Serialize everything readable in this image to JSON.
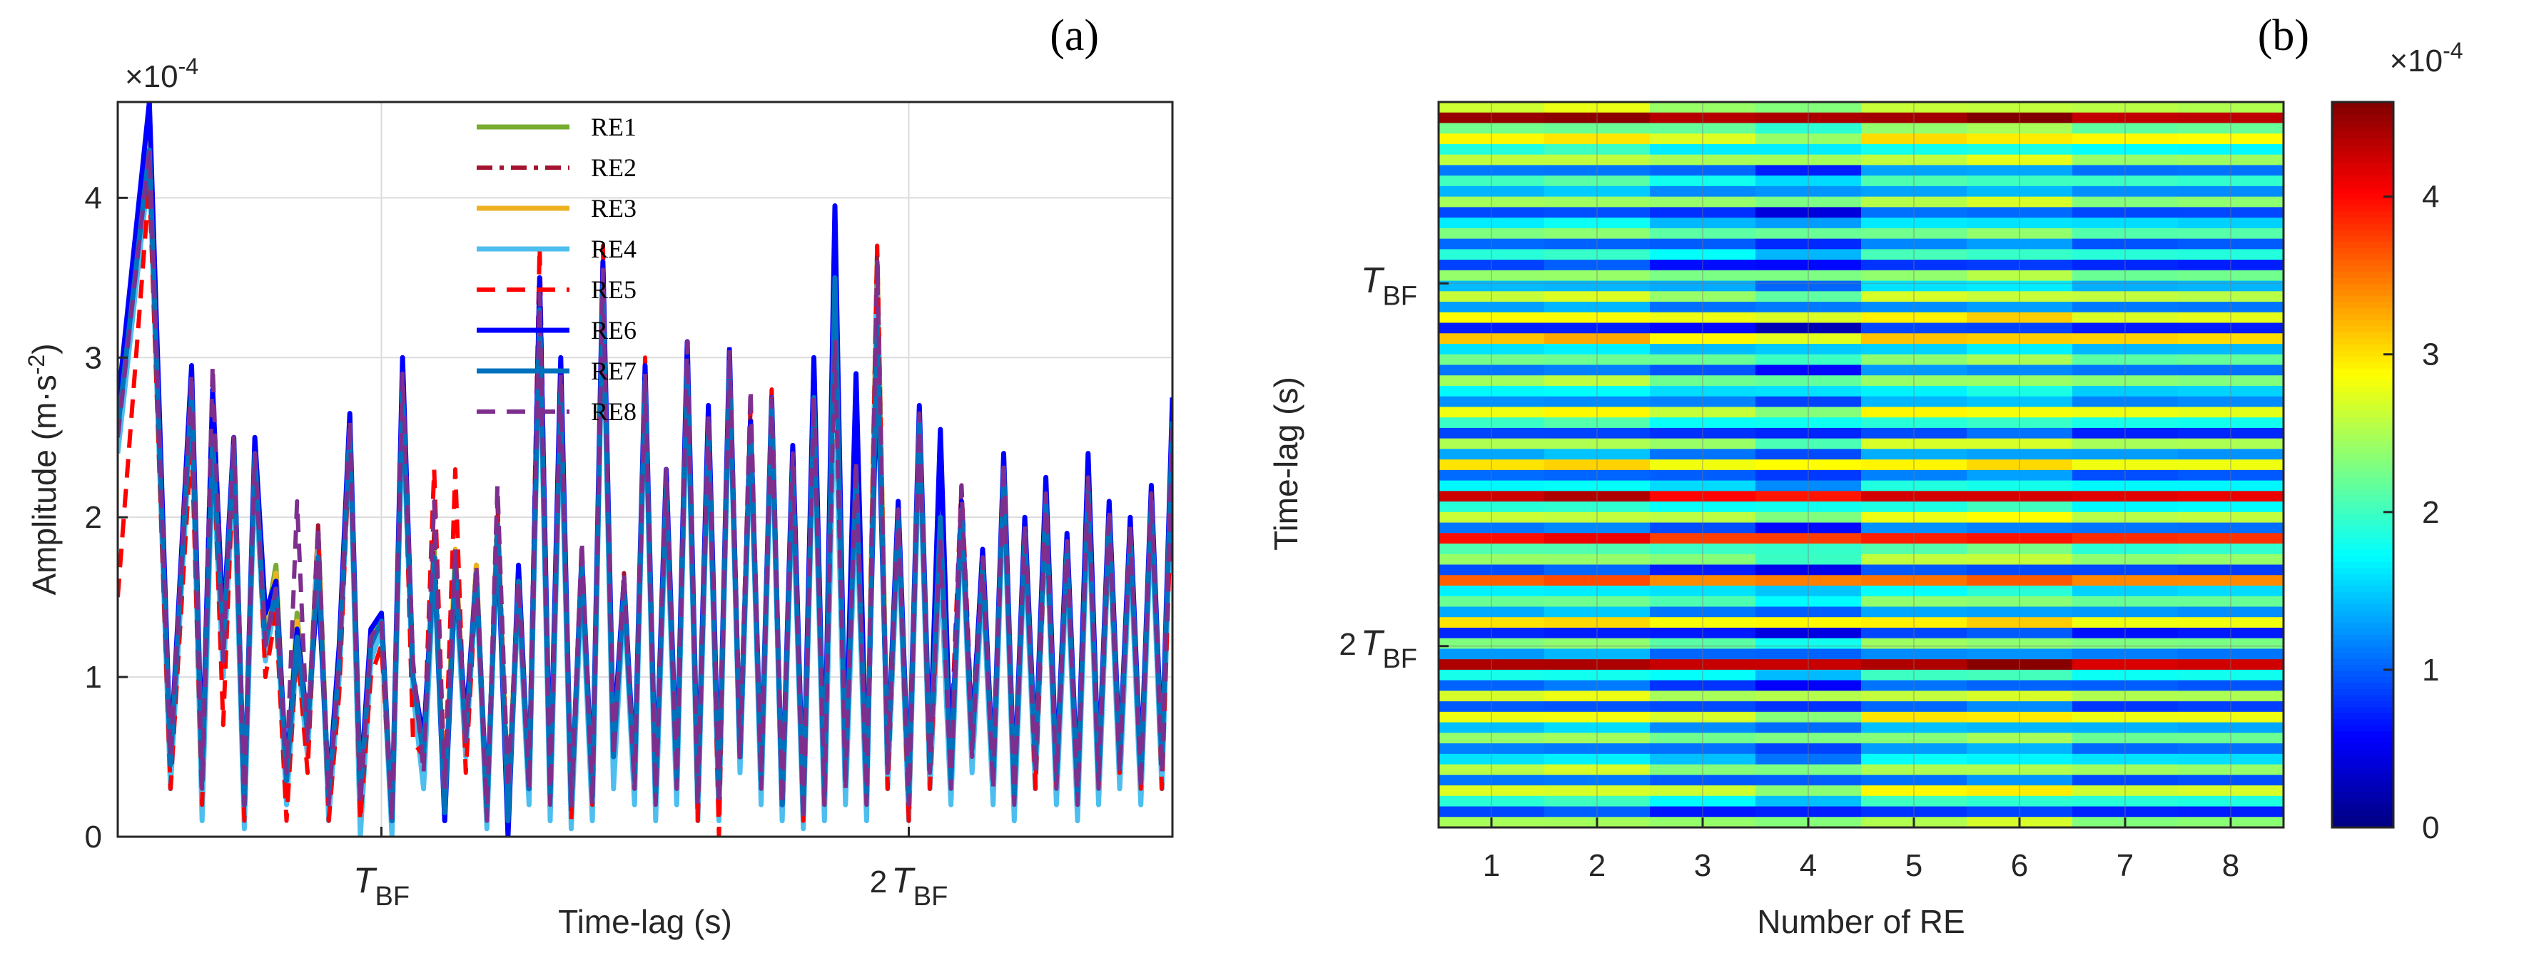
{
  "chart_data": [
    {
      "panel": "(a)",
      "type": "line",
      "xlabel": "Time-lag (s)",
      "ylabel": "Amplitude (m·s",
      "ylabel_sup": "-2",
      "ylabel_close": ")",
      "exponent_label": "×10",
      "exponent_sup": "-4",
      "ylim": [
        0,
        4.6
      ],
      "yticks": [
        "0",
        "1",
        "2",
        "3",
        "4"
      ],
      "xticks": [
        {
          "pre": "",
          "main": "T",
          "sub": "BF",
          "pos": 0.25
        },
        {
          "pre": "2",
          "main": "T",
          "sub": "BF",
          "pos": 0.75
        }
      ],
      "grid": true,
      "legend_position": "top-center",
      "x": [
        0.0,
        0.03,
        0.05,
        0.07,
        0.08,
        0.09,
        0.1,
        0.11,
        0.12,
        0.13,
        0.14,
        0.15,
        0.16,
        0.17,
        0.18,
        0.19,
        0.2,
        0.21,
        0.22,
        0.23,
        0.24,
        0.25,
        0.26,
        0.27,
        0.28,
        0.29,
        0.3,
        0.31,
        0.32,
        0.33,
        0.34,
        0.35,
        0.36,
        0.37,
        0.38,
        0.39,
        0.4,
        0.41,
        0.42,
        0.43,
        0.44,
        0.45,
        0.46,
        0.47,
        0.48,
        0.49,
        0.5,
        0.51,
        0.52,
        0.53,
        0.54,
        0.55,
        0.56,
        0.57,
        0.58,
        0.59,
        0.6,
        0.61,
        0.62,
        0.63,
        0.64,
        0.65,
        0.66,
        0.67,
        0.68,
        0.69,
        0.7,
        0.71,
        0.72,
        0.73,
        0.74,
        0.75,
        0.76,
        0.77,
        0.78,
        0.79,
        0.8,
        0.81,
        0.82,
        0.83,
        0.84,
        0.85,
        0.86,
        0.87,
        0.88,
        0.89,
        0.9,
        0.91,
        0.92,
        0.93,
        0.94,
        0.95,
        0.96,
        0.97,
        0.98,
        0.99,
        1.0
      ],
      "series": [
        {
          "name": "RE1",
          "color": "#77AC30",
          "dash": "solid",
          "values": [
            2.6,
            4.45,
            0.4,
            2.9,
            0.3,
            2.6,
            1.2,
            2.5,
            0.15,
            2.45,
            1.3,
            1.7,
            0.3,
            1.4,
            0.6,
            1.9,
            0.2,
            1.1,
            2.6,
            0.2,
            1.2,
            1.4,
            0.05,
            2.9,
            1.0,
            0.4,
            1.8,
            0.2,
            1.75,
            0.6,
            1.7,
            0.1,
            2.0,
            0.2,
            1.6,
            0.3,
            3.3,
            0.2,
            2.8,
            0.15,
            1.7,
            0.2,
            3.5,
            0.5,
            1.6,
            0.3,
            2.9,
            0.2,
            2.2,
            0.3,
            3.0,
            0.2,
            2.6,
            0.2,
            3.0,
            0.5,
            2.6,
            0.3,
            2.7,
            0.15,
            2.3,
            0.1,
            2.7,
            0.2,
            3.0,
            0.3,
            2.2,
            0.2,
            3.6,
            0.4,
            2.0,
            0.2,
            2.6,
            0.4,
            1.8,
            0.3,
            2.1,
            0.5,
            1.7,
            0.3,
            2.3,
            0.2,
            1.9,
            0.4,
            2.1,
            0.3,
            1.8,
            0.2,
            2.2,
            0.3,
            2.0,
            0.4,
            1.9,
            0.3,
            2.1,
            0.4,
            2.6
          ]
        },
        {
          "name": "RE2",
          "color": "#A2142F",
          "dash": "dashdot",
          "values": [
            2.5,
            4.4,
            0.5,
            2.8,
            0.3,
            2.55,
            1.1,
            2.45,
            0.15,
            2.4,
            1.2,
            1.6,
            0.3,
            1.3,
            0.6,
            1.95,
            0.2,
            1.05,
            2.55,
            0.2,
            1.15,
            1.35,
            0.05,
            2.85,
            1.0,
            0.4,
            1.9,
            0.2,
            1.7,
            0.6,
            1.65,
            0.1,
            2.1,
            0.2,
            1.6,
            0.3,
            3.4,
            0.2,
            2.9,
            0.15,
            1.8,
            0.2,
            3.6,
            0.5,
            1.65,
            0.3,
            2.95,
            0.2,
            2.25,
            0.3,
            3.1,
            0.2,
            2.7,
            0.2,
            3.05,
            0.5,
            2.7,
            0.3,
            2.75,
            0.15,
            2.35,
            0.1,
            2.75,
            0.2,
            3.1,
            0.3,
            2.3,
            0.2,
            3.7,
            0.4,
            2.05,
            0.2,
            2.7,
            0.4,
            1.85,
            0.3,
            2.2,
            0.5,
            1.75,
            0.3,
            2.35,
            0.2,
            1.95,
            0.4,
            2.15,
            0.3,
            1.85,
            0.2,
            2.25,
            0.3,
            2.05,
            0.4,
            1.95,
            0.3,
            2.15,
            0.4,
            2.5
          ]
        },
        {
          "name": "RE3",
          "color": "#EDB120",
          "dash": "solid",
          "values": [
            2.55,
            4.35,
            0.45,
            2.75,
            0.3,
            2.5,
            1.15,
            2.4,
            0.15,
            2.4,
            1.25,
            1.65,
            0.3,
            1.35,
            0.6,
            1.85,
            0.2,
            1.1,
            2.5,
            0.2,
            1.2,
            1.35,
            0.05,
            2.8,
            1.0,
            0.4,
            1.75,
            0.2,
            1.8,
            0.6,
            1.7,
            0.1,
            1.95,
            0.2,
            1.55,
            0.3,
            3.25,
            0.2,
            2.75,
            0.15,
            1.65,
            0.2,
            3.45,
            0.4,
            1.55,
            0.3,
            2.85,
            0.2,
            2.15,
            0.3,
            2.95,
            0.15,
            2.55,
            0.2,
            2.95,
            0.5,
            2.55,
            0.3,
            2.65,
            0.15,
            2.25,
            0.1,
            2.65,
            0.2,
            2.95,
            0.3,
            2.15,
            0.2,
            3.55,
            0.4,
            1.95,
            0.2,
            2.55,
            0.4,
            1.75,
            0.3,
            2.05,
            0.5,
            1.65,
            0.3,
            2.25,
            0.2,
            1.85,
            0.4,
            2.05,
            0.3,
            1.75,
            0.2,
            2.15,
            0.3,
            1.95,
            0.4,
            1.85,
            0.3,
            2.05,
            0.4,
            2.55
          ]
        },
        {
          "name": "RE4",
          "color": "#4DBEEE",
          "dash": "solid",
          "values": [
            2.4,
            4.2,
            0.3,
            2.7,
            0.1,
            2.4,
            1.0,
            2.3,
            0.05,
            2.3,
            1.1,
            1.5,
            0.2,
            1.2,
            0.5,
            1.8,
            0.1,
            1.0,
            2.5,
            0.0,
            1.1,
            1.3,
            0.0,
            2.7,
            0.9,
            0.3,
            1.7,
            0.1,
            1.6,
            0.5,
            1.6,
            0.05,
            1.9,
            0.1,
            1.5,
            0.2,
            3.2,
            0.1,
            2.7,
            0.05,
            1.6,
            0.1,
            3.4,
            0.3,
            1.5,
            0.2,
            2.8,
            0.1,
            2.1,
            0.2,
            2.9,
            0.1,
            2.5,
            0.1,
            2.9,
            0.4,
            2.5,
            0.2,
            2.6,
            0.1,
            2.2,
            0.05,
            2.6,
            0.1,
            2.9,
            0.2,
            2.1,
            0.1,
            3.5,
            0.3,
            1.9,
            0.1,
            2.5,
            0.3,
            1.7,
            0.2,
            2.0,
            0.4,
            1.6,
            0.2,
            2.2,
            0.1,
            1.8,
            0.3,
            2.0,
            0.2,
            1.7,
            0.1,
            2.1,
            0.2,
            1.9,
            0.3,
            1.8,
            0.2,
            2.0,
            0.3,
            2.4
          ]
        },
        {
          "name": "RE5",
          "color": "#FF0000",
          "dash": "dash",
          "values": [
            1.5,
            4.1,
            0.3,
            2.5,
            0.2,
            2.6,
            0.7,
            2.4,
            0.1,
            2.5,
            1.0,
            1.4,
            0.1,
            1.2,
            0.4,
            1.9,
            0.1,
            0.9,
            2.5,
            0.1,
            1.0,
            1.2,
            0.1,
            2.9,
            0.6,
            0.5,
            2.3,
            0.3,
            2.3,
            0.4,
            1.6,
            0.1,
            2.0,
            0.3,
            1.5,
            0.4,
            3.7,
            0.3,
            3.0,
            0.1,
            1.7,
            0.2,
            3.7,
            0.5,
            1.6,
            0.3,
            3.0,
            0.3,
            2.3,
            0.3,
            3.0,
            0.1,
            2.7,
            0.0,
            3.1,
            0.6,
            2.7,
            0.4,
            2.8,
            0.2,
            2.3,
            0.1,
            2.7,
            0.2,
            3.2,
            0.4,
            2.2,
            0.2,
            3.7,
            0.3,
            2.0,
            0.1,
            2.6,
            0.3,
            1.9,
            0.6,
            2.2,
            0.7,
            1.8,
            0.4,
            2.3,
            0.3,
            2.0,
            0.3,
            2.0,
            0.3,
            1.8,
            0.2,
            2.2,
            0.3,
            1.9,
            0.4,
            2.0,
            0.3,
            2.2,
            0.3,
            2.3
          ]
        },
        {
          "name": "RE6",
          "color": "#0000FF",
          "dash": "solid",
          "values": [
            2.7,
            4.6,
            0.5,
            2.95,
            0.4,
            2.8,
            1.3,
            2.5,
            0.2,
            2.5,
            1.4,
            1.6,
            0.4,
            1.3,
            0.7,
            1.6,
            0.3,
            1.2,
            2.65,
            0.3,
            1.3,
            1.4,
            0.1,
            3.0,
            1.0,
            0.6,
            1.75,
            0.1,
            1.65,
            0.7,
            1.65,
            0.2,
            1.9,
            0.0,
            1.7,
            0.3,
            3.5,
            0.3,
            3.0,
            0.2,
            1.75,
            0.3,
            3.6,
            0.6,
            1.6,
            0.4,
            2.95,
            0.3,
            2.3,
            0.4,
            3.1,
            0.3,
            2.7,
            0.3,
            3.05,
            0.5,
            2.6,
            0.4,
            2.75,
            0.2,
            2.45,
            0.2,
            3.0,
            0.3,
            3.95,
            0.4,
            2.9,
            0.3,
            3.0,
            0.5,
            2.1,
            0.3,
            2.7,
            0.5,
            2.55,
            0.4,
            2.1,
            0.6,
            1.8,
            0.4,
            2.4,
            0.3,
            2.0,
            0.5,
            2.25,
            0.4,
            1.9,
            0.3,
            2.4,
            0.4,
            2.1,
            0.5,
            2.0,
            0.4,
            2.2,
            0.5,
            2.75
          ]
        },
        {
          "name": "RE7",
          "color": "#0072BD",
          "dash": "solid",
          "values": [
            2.55,
            4.3,
            0.45,
            2.8,
            0.35,
            2.5,
            1.2,
            2.45,
            0.2,
            2.4,
            1.2,
            1.55,
            0.35,
            1.25,
            0.65,
            1.75,
            0.25,
            1.1,
            2.55,
            0.25,
            1.2,
            1.35,
            0.1,
            2.8,
            1.0,
            0.5,
            1.75,
            0.15,
            1.7,
            0.6,
            1.65,
            0.15,
            1.95,
            0.1,
            1.6,
            0.3,
            3.3,
            0.25,
            2.8,
            0.2,
            1.7,
            0.25,
            3.45,
            0.5,
            1.55,
            0.35,
            2.85,
            0.25,
            2.2,
            0.35,
            2.95,
            0.25,
            2.55,
            0.25,
            2.95,
            0.5,
            2.55,
            0.35,
            2.7,
            0.2,
            2.3,
            0.15,
            2.75,
            0.25,
            3.5,
            0.35,
            2.3,
            0.25,
            3.2,
            0.45,
            2.0,
            0.25,
            2.6,
            0.45,
            2.0,
            0.35,
            2.05,
            0.55,
            1.7,
            0.35,
            2.3,
            0.25,
            1.9,
            0.45,
            2.1,
            0.35,
            1.8,
            0.25,
            2.2,
            0.35,
            2.0,
            0.45,
            1.9,
            0.35,
            2.1,
            0.45,
            2.6
          ]
        },
        {
          "name": "RE8",
          "color": "#7E2F8E",
          "dash": "dash",
          "values": [
            2.5,
            4.3,
            0.5,
            2.9,
            0.3,
            2.95,
            1.1,
            2.5,
            0.2,
            2.4,
            1.2,
            1.55,
            0.4,
            2.1,
            0.6,
            1.95,
            0.2,
            1.1,
            2.6,
            0.2,
            1.25,
            1.35,
            0.1,
            2.9,
            1.1,
            0.4,
            2.1,
            0.3,
            1.8,
            0.6,
            1.7,
            0.1,
            2.2,
            0.3,
            1.6,
            0.3,
            3.4,
            0.2,
            2.9,
            0.2,
            1.85,
            0.2,
            3.55,
            0.5,
            1.65,
            0.3,
            2.9,
            0.2,
            2.3,
            0.3,
            3.1,
            0.2,
            2.65,
            0.2,
            3.05,
            0.5,
            2.8,
            0.3,
            2.75,
            0.2,
            2.4,
            0.1,
            2.75,
            0.2,
            3.1,
            0.3,
            2.35,
            0.2,
            3.6,
            0.4,
            2.05,
            0.2,
            2.65,
            0.4,
            1.85,
            0.3,
            2.2,
            0.5,
            1.75,
            0.3,
            2.35,
            0.2,
            1.95,
            0.4,
            2.15,
            0.3,
            1.85,
            0.2,
            2.25,
            0.3,
            2.05,
            0.4,
            1.95,
            0.3,
            2.15,
            0.4,
            2.55
          ]
        }
      ]
    },
    {
      "panel": "(b)",
      "type": "heatmap",
      "xlabel": "Number of RE",
      "ylabel": "Time-lag (s)",
      "categories": [
        "1",
        "2",
        "3",
        "4",
        "5",
        "6",
        "7",
        "8"
      ],
      "yticks": [
        {
          "pre": "",
          "main": "T",
          "sub": "BF",
          "pos": 0.25
        },
        {
          "pre": "2",
          "main": "T",
          "sub": "BF",
          "pos": 0.75
        }
      ],
      "colorbar": {
        "min": 0,
        "max": 4.6,
        "ticks": [
          "0",
          "1",
          "2",
          "3",
          "4"
        ],
        "exponent_label": "×10",
        "exponent_sup": "-4",
        "colormap": "jet"
      },
      "row_base": [
        2.6,
        4.4,
        2.2,
        2.9,
        1.8,
        2.5,
        1.1,
        2.0,
        1.3,
        2.4,
        0.9,
        1.6,
        2.2,
        1.0,
        1.9,
        0.8,
        2.3,
        1.4,
        2.6,
        1.2,
        2.8,
        0.7,
        3.1,
        1.5,
        2.2,
        1.1,
        2.4,
        1.6,
        1.2,
        2.8,
        1.9,
        0.8,
        2.5,
        1.3,
        2.9,
        1.0,
        1.7,
        4.2,
        1.8,
        2.6,
        1.1,
        3.9,
        2.0,
        2.4,
        0.9,
        3.5,
        1.6,
        2.2,
        1.3,
        2.9,
        0.7,
        2.3,
        1.2,
        4.3,
        1.8,
        1.0,
        2.6,
        0.9,
        2.8,
        1.4,
        2.3,
        1.1,
        1.6,
        2.5,
        1.0,
        2.7,
        1.9,
        0.8,
        2.4
      ],
      "col_offset": [
        0.1,
        0.2,
        -0.2,
        -0.5,
        0.2,
        0.3,
        -0.1,
        -0.1
      ]
    }
  ],
  "panel_labels": {
    "a": "(a)",
    "b": "(b)"
  }
}
